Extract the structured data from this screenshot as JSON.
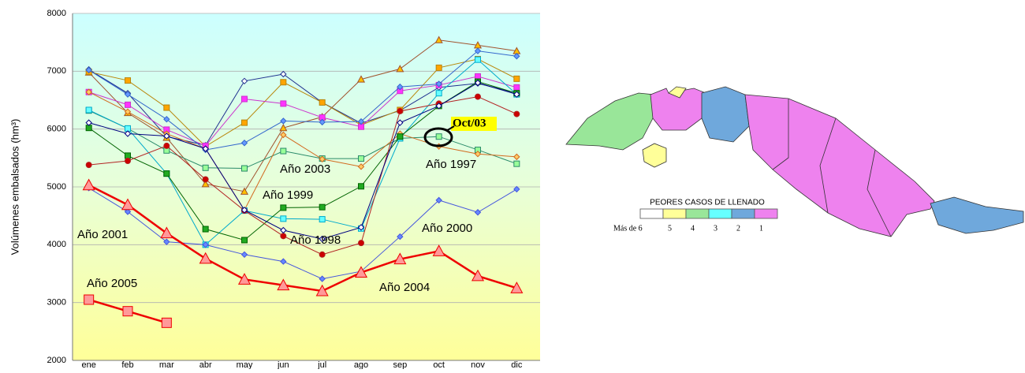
{
  "chart_data": {
    "type": "line",
    "y_label": "Volúmenes embalsados (hm³)",
    "categories": [
      "ene",
      "feb",
      "mar",
      "abr",
      "may",
      "jun",
      "jul",
      "ago",
      "sep",
      "oct",
      "nov",
      "dic"
    ],
    "ylim": [
      2000,
      8000
    ],
    "yticks": [
      2000,
      3000,
      4000,
      5000,
      6000,
      7000,
      8000
    ],
    "grid": true,
    "series": [
      {
        "color": "#1f2f8f",
        "marker": "diamond",
        "marker_color": "#ffffff",
        "values": [
          7030,
          6620,
          5870,
          5720,
          6830,
          6950,
          6460,
          6100,
          6320,
          6720,
          6790,
          6620
        ]
      },
      {
        "color": "#a0522d",
        "marker": "triangle",
        "marker_color": "#ffc000",
        "values": [
          6980,
          6280,
          5850,
          5050,
          4920,
          6020,
          6210,
          6860,
          7040,
          7540,
          7450,
          7350
        ]
      },
      {
        "color": "#b8860b",
        "marker": "square",
        "marker_color": "#ffa500",
        "values": [
          6990,
          6840,
          6370,
          5700,
          6110,
          6810,
          6460,
          6070,
          6330,
          7060,
          7210,
          6870
        ]
      },
      {
        "color": "#cc33cc",
        "marker": "square",
        "marker_color": "#ff33ff",
        "values": [
          6640,
          6420,
          5990,
          5710,
          6520,
          6440,
          6200,
          6040,
          6660,
          6760,
          6910,
          6720
        ]
      },
      {
        "color": "#3366cc",
        "marker": "diamond",
        "marker_color": "#6699ff",
        "values": [
          7020,
          6600,
          6170,
          5640,
          5760,
          6140,
          6120,
          6130,
          6730,
          6780,
          7350,
          7260
        ]
      },
      {
        "color": "#2a8a6a",
        "marker": "square",
        "marker_color": "#99ff99",
        "values": [
          6320,
          6010,
          5630,
          5330,
          5320,
          5620,
          5490,
          5490,
          5840,
          5870,
          5640,
          5400
        ]
      },
      {
        "color": "#d2691e",
        "marker": "diamond",
        "marker_color": "#ffcc66",
        "values": [
          6640,
          6300,
          5920,
          5660,
          4600,
          5900,
          5480,
          5350,
          5920,
          5700,
          5570,
          5520
        ]
      },
      {
        "color": "#00aacc",
        "marker": "square",
        "marker_color": "#66ffff",
        "values": [
          6330,
          6010,
          5230,
          4000,
          4590,
          4450,
          4440,
          4280,
          5840,
          6620,
          7200,
          6600
        ]
      },
      {
        "color": "#006400",
        "marker": "square",
        "marker_color": "#22aa22",
        "values": [
          6020,
          5540,
          5230,
          4270,
          4080,
          4640,
          4650,
          5010,
          5870,
          6400,
          6820,
          6620
        ]
      },
      {
        "color": "#b22222",
        "marker": "circle",
        "marker_color": "#cc0000",
        "values": [
          5380,
          5450,
          5710,
          5130,
          4590,
          4150,
          3830,
          4030,
          6310,
          6440,
          6560,
          6260
        ]
      },
      {
        "color": "#000080",
        "marker": "diamond",
        "marker_color": "#ffffff",
        "values": [
          6110,
          5920,
          5880,
          5660,
          4600,
          4250,
          4100,
          4300,
          6110,
          6400,
          6800,
          6600
        ]
      },
      {
        "color": "#4455dd",
        "marker": "diamond",
        "marker_color": "#6688ff",
        "values": [
          4980,
          4570,
          4050,
          4000,
          3830,
          3710,
          3410,
          3540,
          4140,
          4770,
          4560,
          4960
        ]
      },
      {
        "color": "#ee0000",
        "marker": "triangle",
        "marker_color": "#ff9999",
        "width": 2.5,
        "values": [
          5030,
          4690,
          4200,
          3760,
          3400,
          3300,
          3200,
          3520,
          3750,
          3890,
          3460,
          3250
        ]
      },
      {
        "color": "#ee0000",
        "marker": "square",
        "marker_color": "#ff9999",
        "width": 2.5,
        "values": [
          3050,
          2850,
          2650,
          null,
          null,
          null,
          null,
          null,
          null,
          null,
          null,
          null
        ]
      }
    ],
    "annotations": [
      "Año 2001",
      "Año 2005",
      "Año 2003",
      "Año 1999",
      "Año 1998",
      "Año 1997",
      "Año 2000",
      "Año 2004",
      "Oct/03"
    ]
  },
  "map": {
    "legend_title": "PEORES CASOS DE LLENADO",
    "legend_labels": [
      "Más de 6",
      "5",
      "4",
      "3",
      "2",
      "1"
    ],
    "legend_colors": [
      "#ffffff",
      "#ffff99",
      "#99e699",
      "#66ffff",
      "#6fa8dc",
      "#ee82ee"
    ]
  }
}
